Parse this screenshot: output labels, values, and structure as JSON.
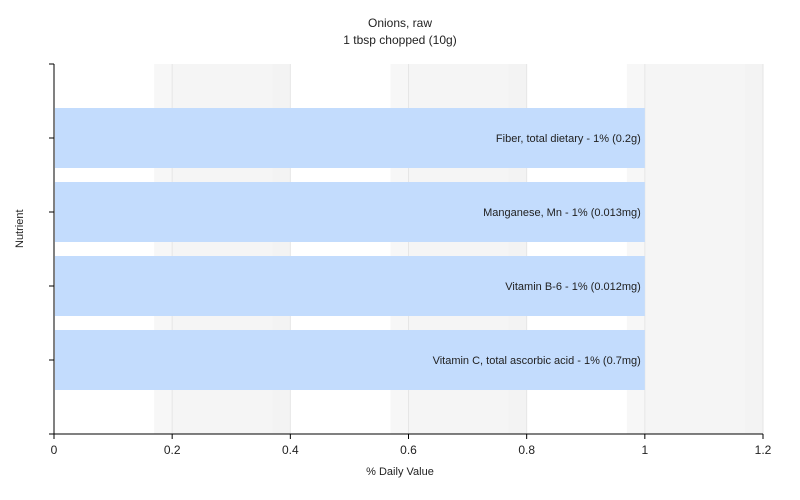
{
  "chart_data": {
    "type": "bar",
    "orientation": "horizontal",
    "title": "Onions, raw",
    "subtitle": "1 tbsp chopped (10g)",
    "xlabel": "% Daily Value",
    "ylabel": "Nutrient",
    "xlim": [
      0,
      1.2
    ],
    "x_ticks": [
      "0",
      "0.2",
      "0.4",
      "0.6",
      "0.8",
      "1",
      "1.2"
    ],
    "grid": true,
    "bar_color": "#c3dcfd",
    "categories": [
      "Fiber, total dietary - 1% (0.2g)",
      "Manganese, Mn - 1% (0.013mg)",
      "Vitamin B-6 - 1% (0.012mg)",
      "Vitamin C, total ascorbic acid - 1% (0.7mg)"
    ],
    "values": [
      1,
      1,
      1,
      1
    ]
  }
}
